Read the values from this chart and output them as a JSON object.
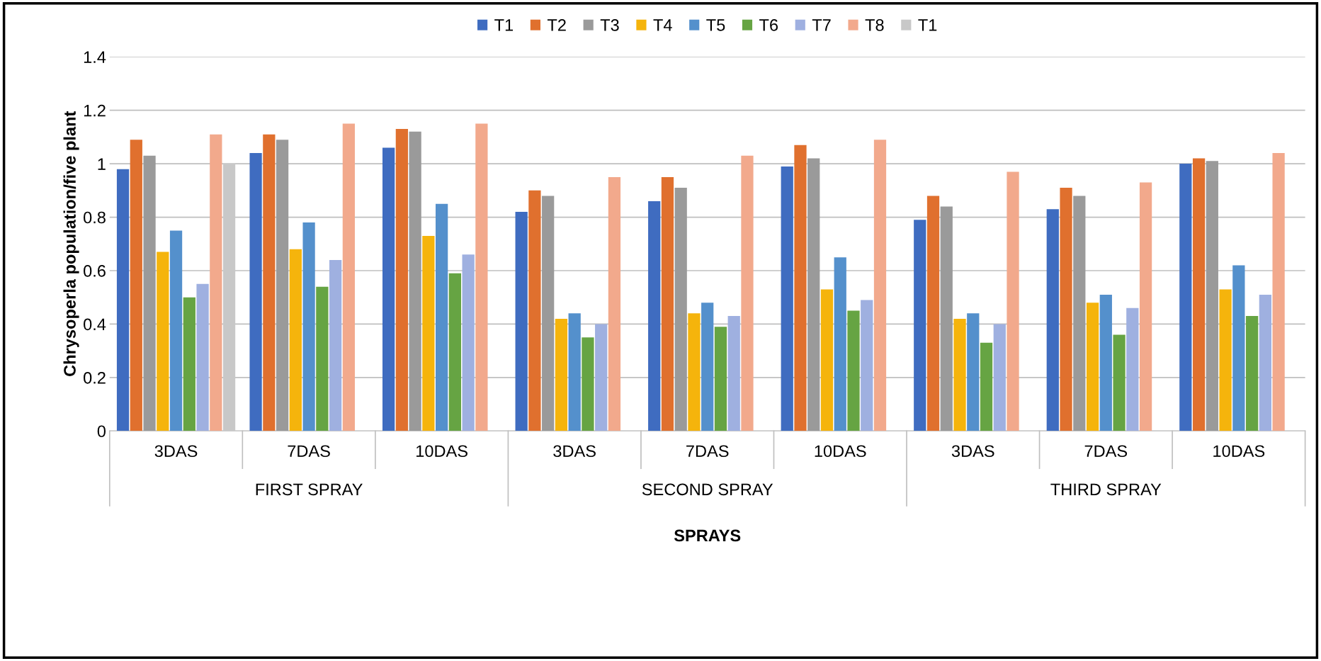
{
  "chart_data": {
    "type": "bar",
    "xlabel": "SPRAYS",
    "ylabel": "Chrysoperla population/five plant",
    "categories": [
      "3DAS",
      "7DAS",
      "10DAS",
      "3DAS",
      "7DAS",
      "10DAS",
      "3DAS",
      "7DAS",
      "10DAS"
    ],
    "annotations": [
      "FIRST SPRAY",
      "SECOND SPRAY",
      "THIRD SPRAY"
    ],
    "series": [
      {
        "name": "T1",
        "color": "#3f6cc0",
        "values": [
          0.98,
          1.04,
          1.06,
          0.82,
          0.86,
          0.99,
          0.79,
          0.83,
          1.0
        ]
      },
      {
        "name": "T2",
        "color": "#e0702e",
        "values": [
          1.09,
          1.11,
          1.13,
          0.9,
          0.95,
          1.07,
          0.88,
          0.91,
          1.02
        ]
      },
      {
        "name": "T3",
        "color": "#9a9a9a",
        "values": [
          1.03,
          1.09,
          1.12,
          0.88,
          0.91,
          1.02,
          0.84,
          0.88,
          1.01
        ]
      },
      {
        "name": "T4",
        "color": "#f5b40c",
        "values": [
          0.67,
          0.68,
          0.73,
          0.42,
          0.44,
          0.53,
          0.42,
          0.48,
          0.53
        ]
      },
      {
        "name": "T5",
        "color": "#5490cc",
        "values": [
          0.75,
          0.78,
          0.85,
          0.44,
          0.48,
          0.65,
          0.44,
          0.51,
          0.62
        ]
      },
      {
        "name": "T6",
        "color": "#66a443",
        "values": [
          0.5,
          0.54,
          0.59,
          0.35,
          0.39,
          0.45,
          0.33,
          0.36,
          0.43
        ]
      },
      {
        "name": "T7",
        "color": "#9fb0e0",
        "values": [
          0.55,
          0.64,
          0.66,
          0.4,
          0.43,
          0.49,
          0.4,
          0.46,
          0.51
        ]
      },
      {
        "name": "T8",
        "color": "#f2a98c",
        "values": [
          1.11,
          1.15,
          1.15,
          0.95,
          1.03,
          1.09,
          0.97,
          0.93,
          1.04
        ]
      },
      {
        "name": "T1",
        "color": "#c8c8c8",
        "values": [
          1.0,
          null,
          null,
          null,
          null,
          null,
          null,
          null,
          null
        ]
      }
    ],
    "ylim": [
      0,
      1.4
    ],
    "yticks": [
      0,
      0.2,
      0.4,
      0.6,
      0.8,
      1,
      1.2,
      1.4
    ],
    "grid": "y",
    "legend": "top"
  }
}
